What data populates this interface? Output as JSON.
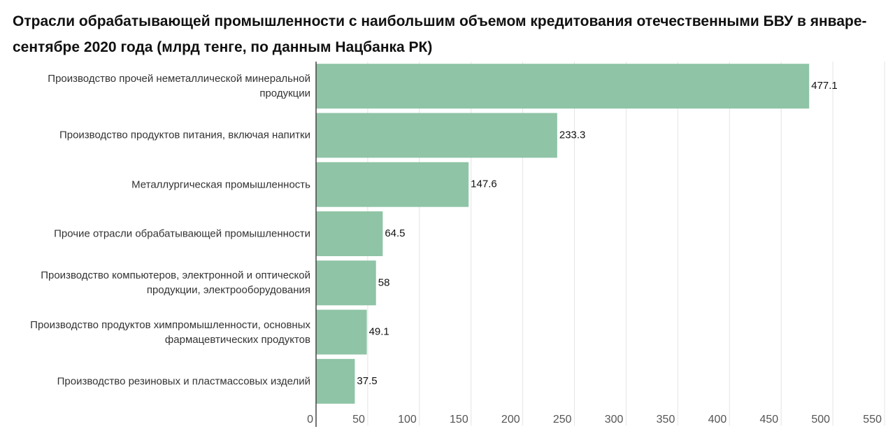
{
  "chart_data": {
    "type": "bar",
    "orientation": "horizontal",
    "title": "Отрасли обрабатывающей промышленности с наибольшим объемом кредитования отечественными БВУ в январе-сентябре 2020 года (млрд тенге, по данным Нацбанка РК)",
    "categories": [
      "Производство прочей неметаллической минеральной продукции",
      "Производство продуктов питания, включая напитки",
      "Металлургическая промышленность",
      "Прочие отрасли обрабатывающей промышленности",
      "Производство компьютеров, электронной и оптической продукции, электрооборудования",
      "Производство продуктов химпромышленности, основных фармацевтических продуктов",
      "Производство резиновых и пластмассовых изделий"
    ],
    "values": [
      477.1,
      233.3,
      147.6,
      64.5,
      58,
      49.1,
      37.5
    ],
    "color": "#8fc4a6",
    "xlim": [
      0,
      550
    ],
    "xticks": [
      0,
      50,
      100,
      150,
      200,
      250,
      300,
      350,
      400,
      450,
      500,
      550
    ],
    "grid": true
  }
}
